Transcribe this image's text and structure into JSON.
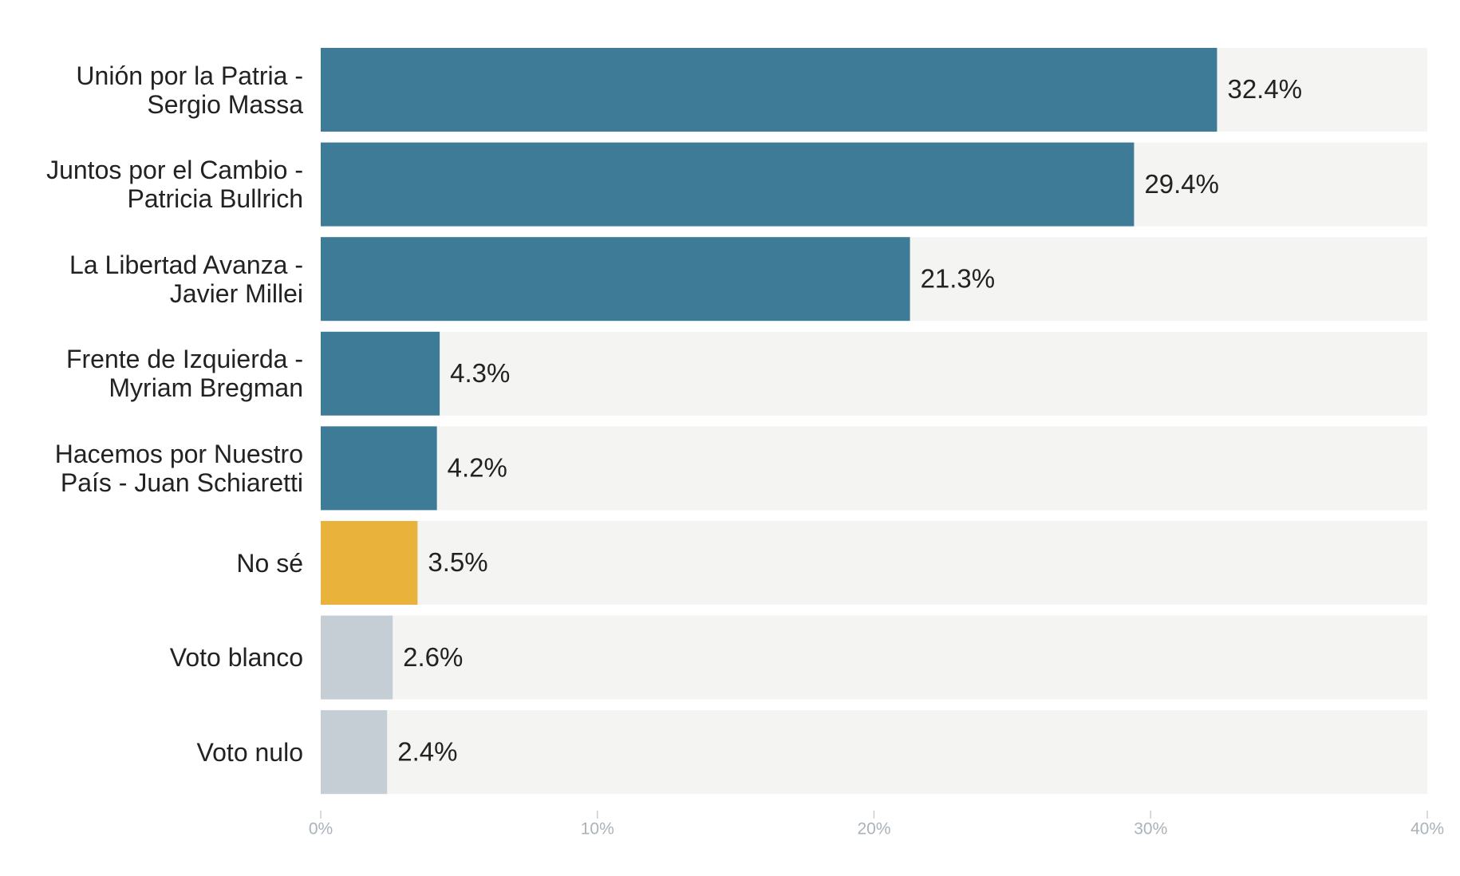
{
  "chart_data": {
    "type": "bar",
    "categories": [
      "Unión por la Patria - Sergio Massa",
      "Juntos por el Cambio - Patricia Bullrich",
      "La Libertad Avanza - Javier Millei",
      "Frente de Izquierda - Myriam Bregman",
      "Hacemos por Nuestro País - Juan Schiaretti",
      "No sé",
      "Voto blanco",
      "Voto nulo"
    ],
    "values": [
      32.4,
      29.4,
      21.3,
      4.3,
      4.2,
      3.5,
      2.6,
      2.4
    ],
    "value_labels": [
      "32.4%",
      "29.4%",
      "21.3%",
      "4.3%",
      "4.2%",
      "3.5%",
      "2.6%",
      "2.4%"
    ],
    "colors": [
      "#3d7b96",
      "#3d7b96",
      "#3d7b96",
      "#3d7b96",
      "#3d7b96",
      "#e9b33b",
      "#c5ced4",
      "#c5ced4"
    ],
    "xlim": [
      0,
      40
    ],
    "xticks": [
      {
        "value": 0,
        "label": "0%"
      },
      {
        "value": 10,
        "label": "10%"
      },
      {
        "value": 20,
        "label": "20%"
      },
      {
        "value": 30,
        "label": "30%"
      },
      {
        "value": 40,
        "label": "40%"
      }
    ]
  }
}
